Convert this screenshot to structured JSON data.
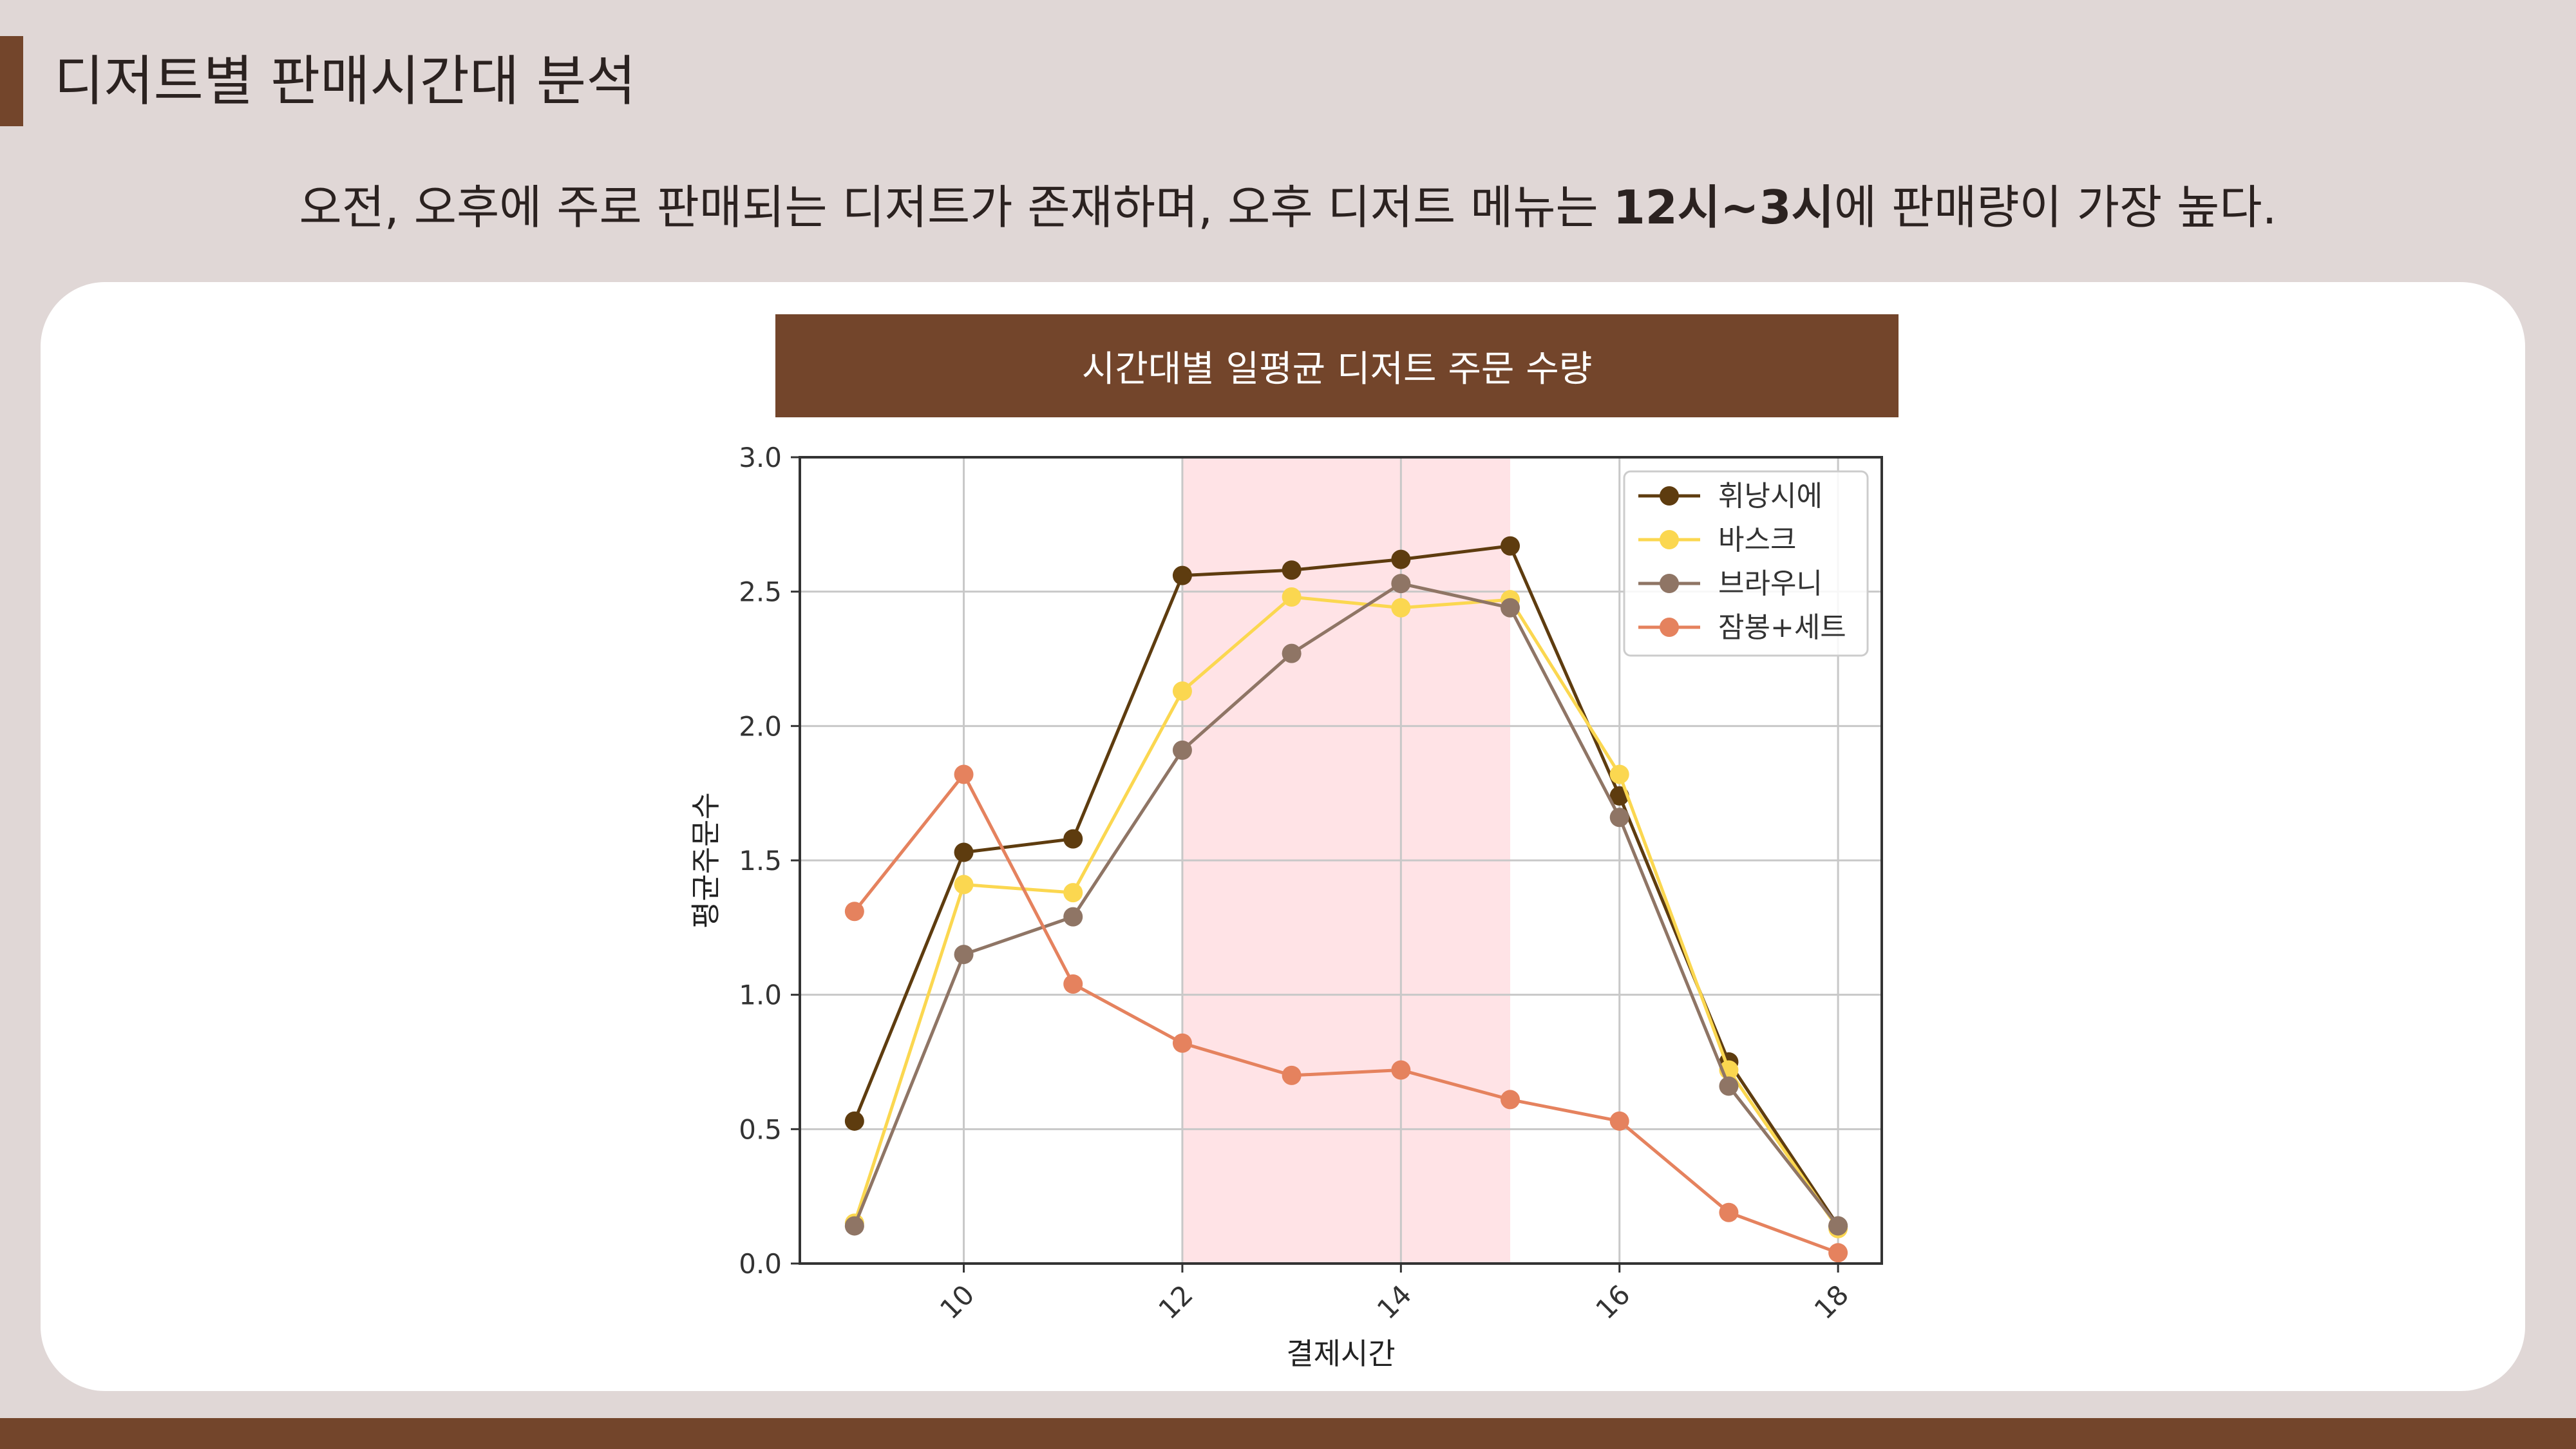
{
  "slide": {
    "title": "디저트별 판매시간대 분석",
    "subtitle_pre": "오전, 오후에 주로 판매되는 디저트가 존재하며, 오후 디저트 메뉴는 ",
    "subtitle_bold": "12시~3시",
    "subtitle_post": "에 판매량이 가장 높다.",
    "colors": {
      "background": "#e0d7d6",
      "accent": "#73452b",
      "card": "#ffffff"
    }
  },
  "chart_data": {
    "type": "line",
    "title": "시간대별 일평균 디저트 주문 수량",
    "xlabel": "결제시간",
    "ylabel": "평균주문수",
    "x": [
      9,
      10,
      11,
      12,
      13,
      14,
      15,
      16,
      17,
      18
    ],
    "xlim": [
      8.5,
      18.4
    ],
    "ylim": [
      0.0,
      3.0
    ],
    "xticks": [
      10,
      12,
      14,
      16,
      18
    ],
    "yticks": [
      0.0,
      0.5,
      1.0,
      1.5,
      2.0,
      2.5,
      3.0
    ],
    "ytick_labels": [
      "0.0",
      "0.5",
      "1.0",
      "1.5",
      "2.0",
      "2.5",
      "3.0"
    ],
    "grid": true,
    "legend_position": "top-right",
    "highlight_x_range": [
      12,
      15
    ],
    "highlight_color": "#ffe3e6",
    "series": [
      {
        "name": "휘낭시에",
        "color": "#5e3c0f",
        "values": [
          0.53,
          1.53,
          1.58,
          2.56,
          2.58,
          2.62,
          2.67,
          1.74,
          0.75,
          0.14
        ]
      },
      {
        "name": "바스크",
        "color": "#fbd750",
        "values": [
          0.15,
          1.41,
          1.38,
          2.13,
          2.48,
          2.44,
          2.47,
          1.82,
          0.72,
          0.13
        ]
      },
      {
        "name": "브라우니",
        "color": "#8f7565",
        "values": [
          0.14,
          1.15,
          1.29,
          1.91,
          2.27,
          2.53,
          2.44,
          1.66,
          0.66,
          0.14
        ]
      },
      {
        "name": "잠봉+세트",
        "color": "#e5825e",
        "values": [
          1.31,
          1.82,
          1.04,
          0.82,
          0.7,
          0.72,
          0.61,
          0.53,
          0.19,
          0.04
        ]
      }
    ]
  }
}
